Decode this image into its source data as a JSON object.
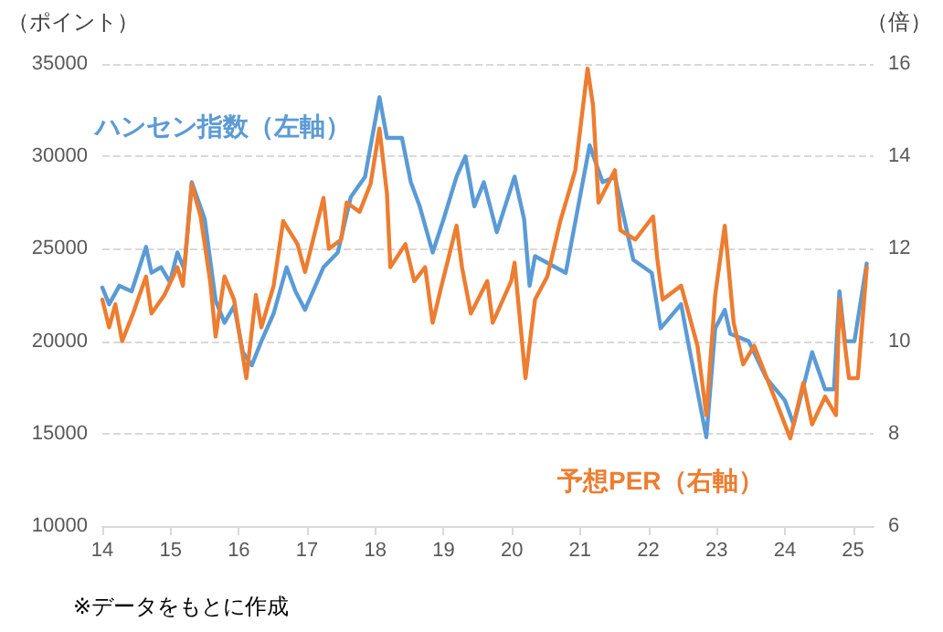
{
  "chart_data": {
    "type": "line",
    "ylabel": "（ポイント）",
    "y2label": "（倍）",
    "annotations": [
      "※データをもとに作成"
    ],
    "xlim": [
      2014,
      2025.3
    ],
    "xticks": [
      {
        "value": 2014,
        "label": "14"
      },
      {
        "value": 2015,
        "label": "15"
      },
      {
        "value": 2016,
        "label": "16"
      },
      {
        "value": 2017,
        "label": "17"
      },
      {
        "value": 2018,
        "label": "18"
      },
      {
        "value": 2019,
        "label": "19"
      },
      {
        "value": 2020,
        "label": "20"
      },
      {
        "value": 2021,
        "label": "21"
      },
      {
        "value": 2022,
        "label": "22"
      },
      {
        "value": 2023,
        "label": "23"
      },
      {
        "value": 2024,
        "label": "24"
      },
      {
        "value": 2025,
        "label": "25"
      }
    ],
    "ylim": [
      10000,
      35000
    ],
    "yticks": [
      10000,
      15000,
      20000,
      25000,
      30000,
      35000
    ],
    "y2lim": [
      6,
      16
    ],
    "y2ticks": [
      6,
      8,
      10,
      12,
      14,
      16
    ],
    "grid": "y",
    "legend": false,
    "marker": "none",
    "line_style": "solid",
    "series": [
      {
        "name": "ハンセン指数（左軸）",
        "color": "#5b9bd5",
        "x": [
          2014.0,
          2014.1,
          2014.25,
          2014.43,
          2014.64,
          2014.72,
          2014.86,
          2014.99,
          2015.1,
          2015.2,
          2015.31,
          2015.5,
          2015.66,
          2015.79,
          2015.93,
          2016.06,
          2016.19,
          2016.33,
          2016.51,
          2016.7,
          2016.83,
          2016.97,
          2017.24,
          2017.45,
          2017.64,
          2017.85,
          2018.06,
          2018.17,
          2018.39,
          2018.52,
          2018.65,
          2018.84,
          2019.0,
          2019.19,
          2019.32,
          2019.45,
          2019.59,
          2019.78,
          2020.04,
          2020.18,
          2020.26,
          2020.34,
          2020.79,
          2021.14,
          2021.33,
          2021.51,
          2021.78,
          2022.05,
          2022.18,
          2022.48,
          2022.58,
          2022.85,
          2022.98,
          2023.12,
          2023.2,
          2023.47,
          2023.73,
          2024.0,
          2024.13,
          2024.4,
          2024.59,
          2024.72,
          2024.8,
          2024.88,
          2025.02,
          2025.2
        ],
        "values": [
          22900,
          22000,
          23000,
          22700,
          25100,
          23700,
          24000,
          23200,
          24800,
          23900,
          28600,
          26600,
          22200,
          21000,
          21900,
          19400,
          18700,
          20000,
          21500,
          24000,
          22700,
          21700,
          24000,
          24800,
          27800,
          28900,
          33200,
          31000,
          31000,
          28600,
          27300,
          24800,
          26600,
          28900,
          30000,
          27300,
          28600,
          25900,
          28900,
          26600,
          23000,
          24600,
          23700,
          30600,
          28600,
          28900,
          24400,
          23700,
          20700,
          22000,
          20000,
          14800,
          20700,
          21700,
          20400,
          20000,
          18000,
          16800,
          15500,
          19400,
          17400,
          17400,
          22700,
          20000,
          20000,
          24200
        ]
      },
      {
        "name": "予想PER（右軸）",
        "color": "#ed7d31",
        "axis": "y2",
        "x": [
          2014.0,
          2014.1,
          2014.19,
          2014.29,
          2014.45,
          2014.64,
          2014.72,
          2014.91,
          2015.1,
          2015.18,
          2015.31,
          2015.44,
          2015.58,
          2015.66,
          2015.79,
          2015.93,
          2016.11,
          2016.25,
          2016.33,
          2016.51,
          2016.65,
          2016.86,
          2016.97,
          2017.24,
          2017.32,
          2017.5,
          2017.58,
          2017.77,
          2017.93,
          2018.06,
          2018.17,
          2018.22,
          2018.44,
          2018.57,
          2018.73,
          2018.84,
          2018.97,
          2019.19,
          2019.27,
          2019.4,
          2019.64,
          2019.72,
          2019.99,
          2020.04,
          2020.2,
          2020.34,
          2020.52,
          2020.71,
          2020.93,
          2021.11,
          2021.19,
          2021.27,
          2021.51,
          2021.59,
          2021.81,
          2022.07,
          2022.13,
          2022.21,
          2022.48,
          2022.72,
          2022.85,
          2022.98,
          2023.12,
          2023.25,
          2023.39,
          2023.55,
          2023.87,
          2024.08,
          2024.27,
          2024.4,
          2024.59,
          2024.75,
          2024.8,
          2024.94,
          2025.07,
          2025.2
        ],
        "values": [
          10.9,
          10.3,
          10.8,
          10.0,
          10.6,
          11.4,
          10.6,
          11.0,
          11.6,
          11.2,
          13.4,
          12.7,
          11.3,
          10.1,
          11.4,
          10.9,
          9.2,
          11.0,
          10.3,
          11.2,
          12.6,
          12.1,
          11.5,
          13.1,
          12.0,
          12.2,
          13.0,
          12.8,
          13.4,
          14.6,
          13.2,
          11.6,
          12.1,
          11.3,
          11.6,
          10.4,
          11.2,
          12.5,
          11.6,
          10.6,
          11.3,
          10.4,
          11.3,
          11.7,
          9.2,
          10.9,
          11.4,
          12.6,
          13.7,
          15.9,
          15.1,
          13.0,
          13.7,
          12.4,
          12.2,
          12.7,
          11.8,
          10.9,
          11.2,
          9.9,
          8.4,
          11.0,
          12.5,
          10.4,
          9.5,
          9.9,
          8.7,
          7.9,
          9.1,
          8.2,
          8.8,
          8.4,
          10.9,
          9.2,
          9.2,
          11.6
        ]
      }
    ]
  }
}
